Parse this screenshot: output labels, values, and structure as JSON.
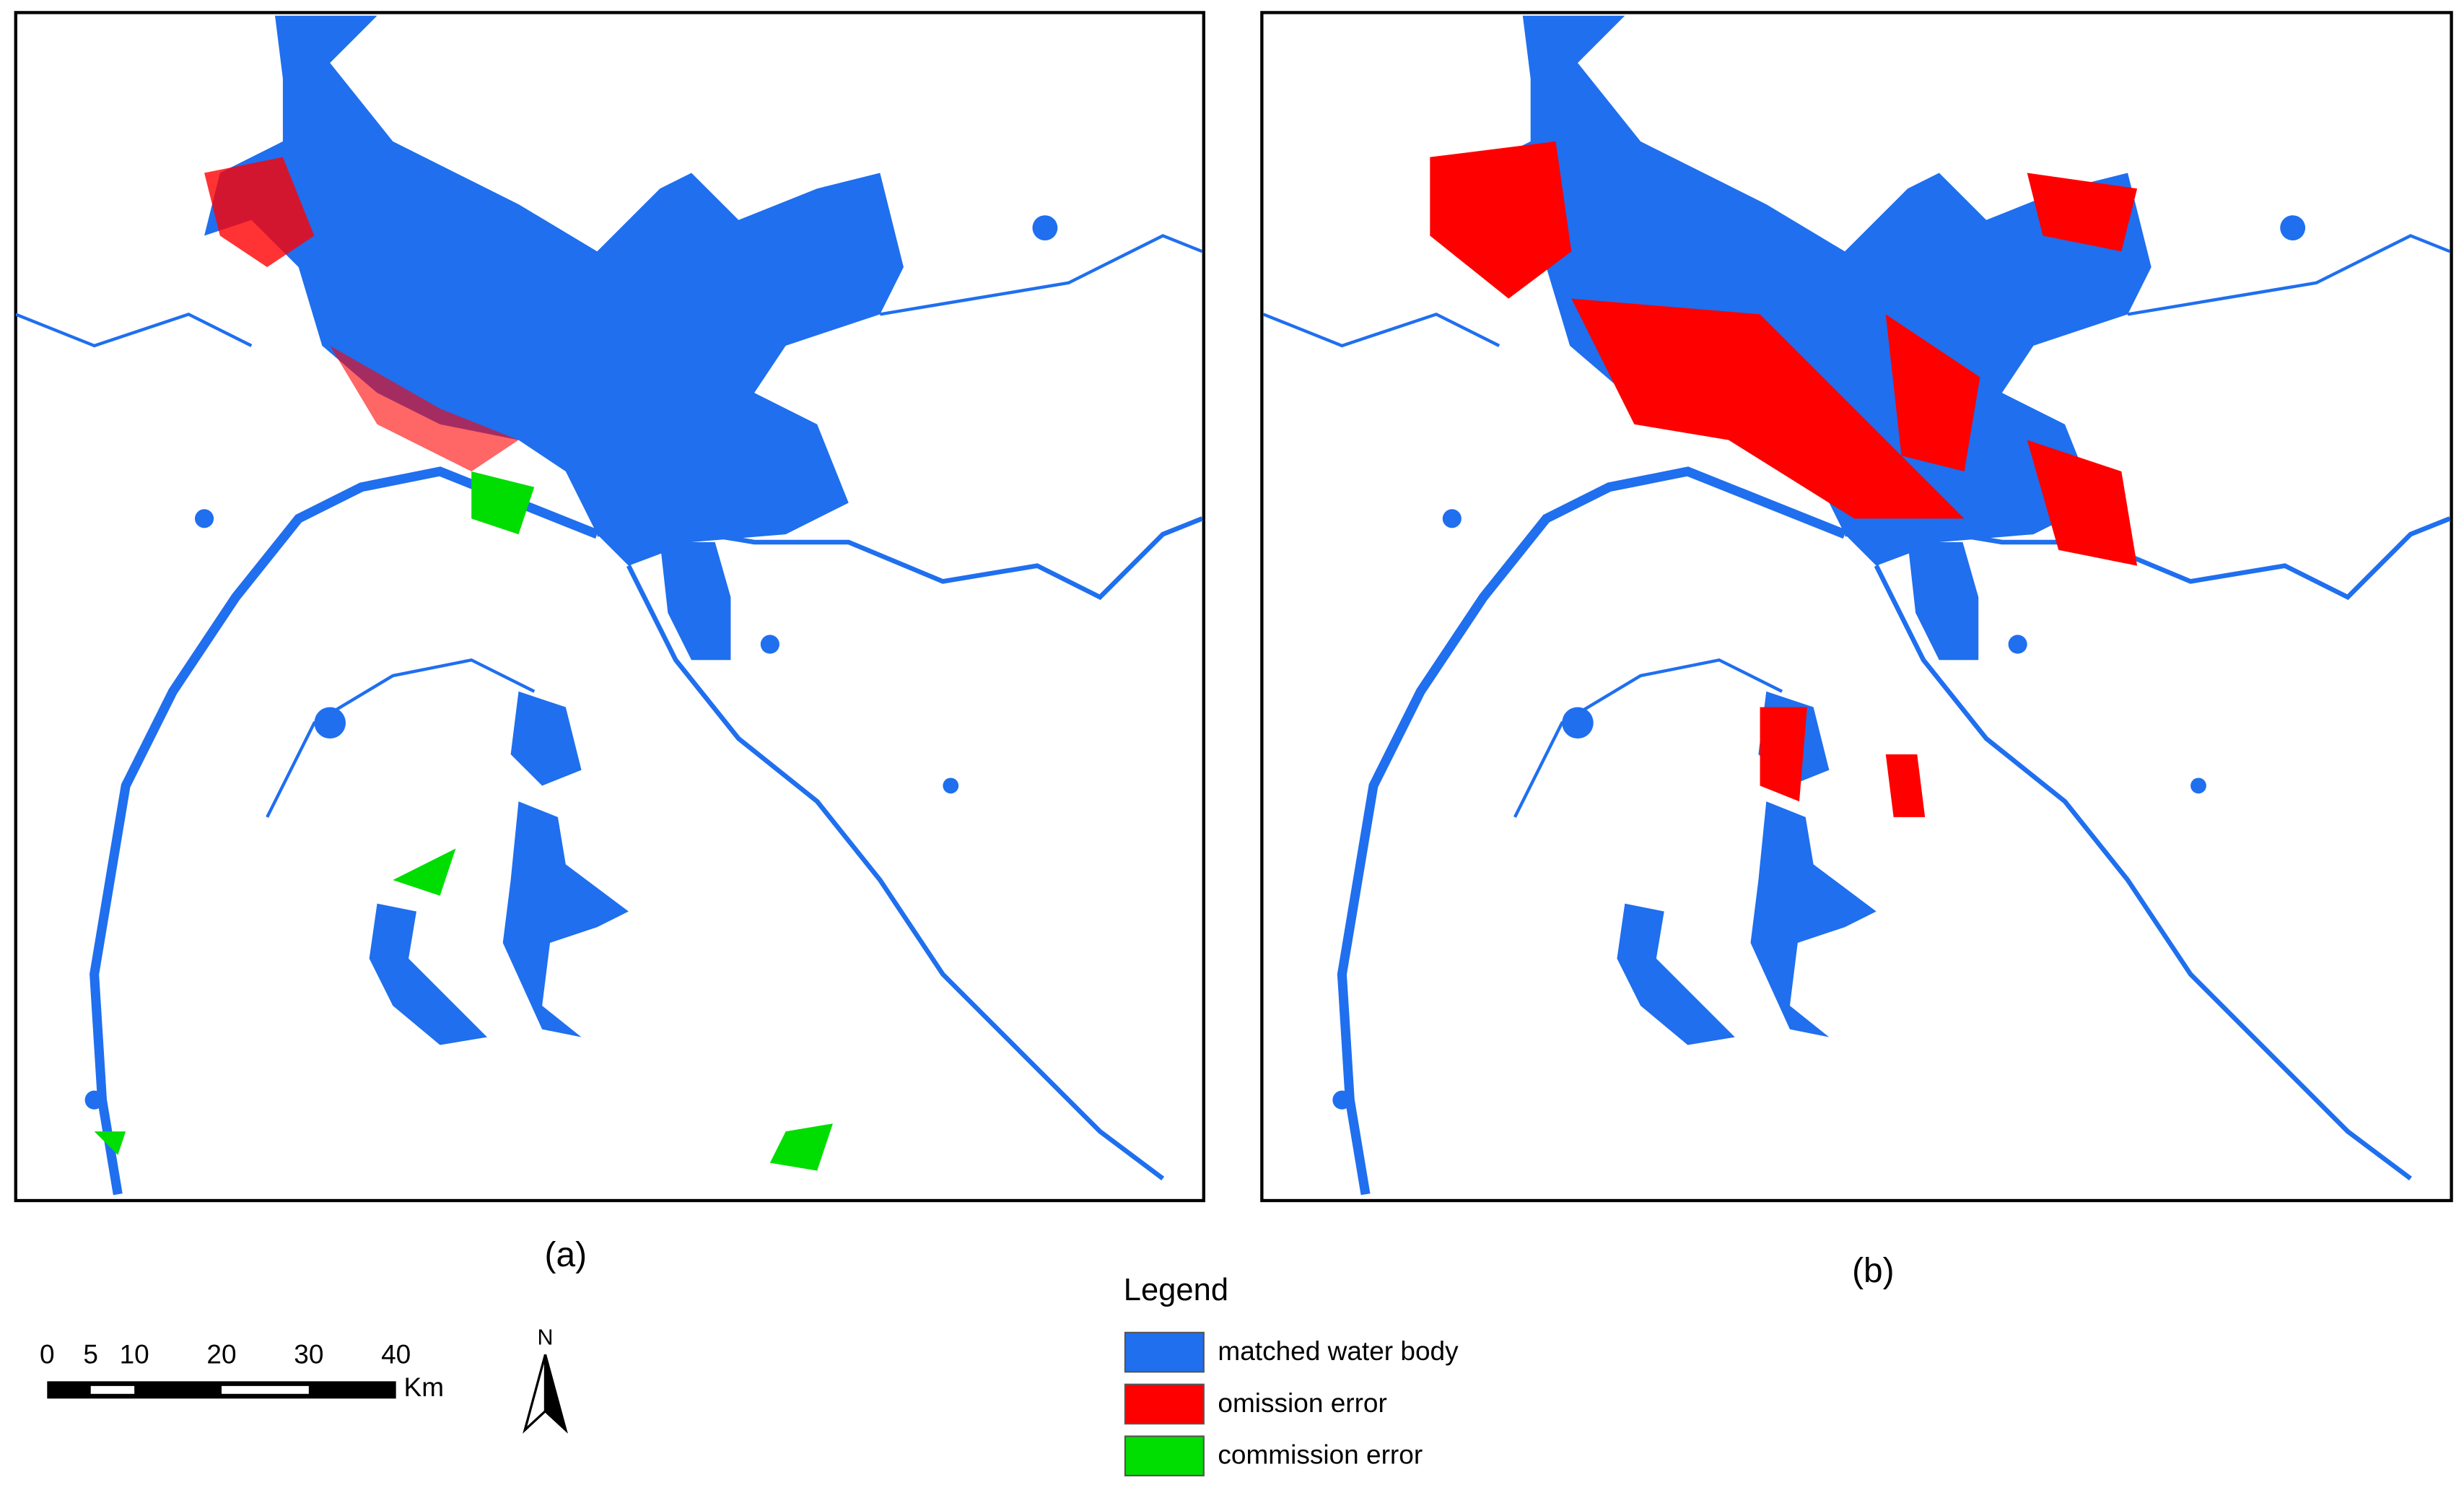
{
  "panels": [
    {
      "label": "(a)"
    },
    {
      "label": "(b)"
    }
  ],
  "legend": {
    "title": "Legend",
    "items": [
      {
        "label": "matched water body",
        "color": "#1f6fef"
      },
      {
        "label": "omission error",
        "color": "#ff0000"
      },
      {
        "label": "commission error",
        "color": "#00dd00"
      }
    ]
  },
  "scale_bar": {
    "ticks": [
      0,
      5,
      10,
      20,
      30,
      40
    ],
    "unit": "Km"
  },
  "north_arrow": {
    "label": "N"
  }
}
